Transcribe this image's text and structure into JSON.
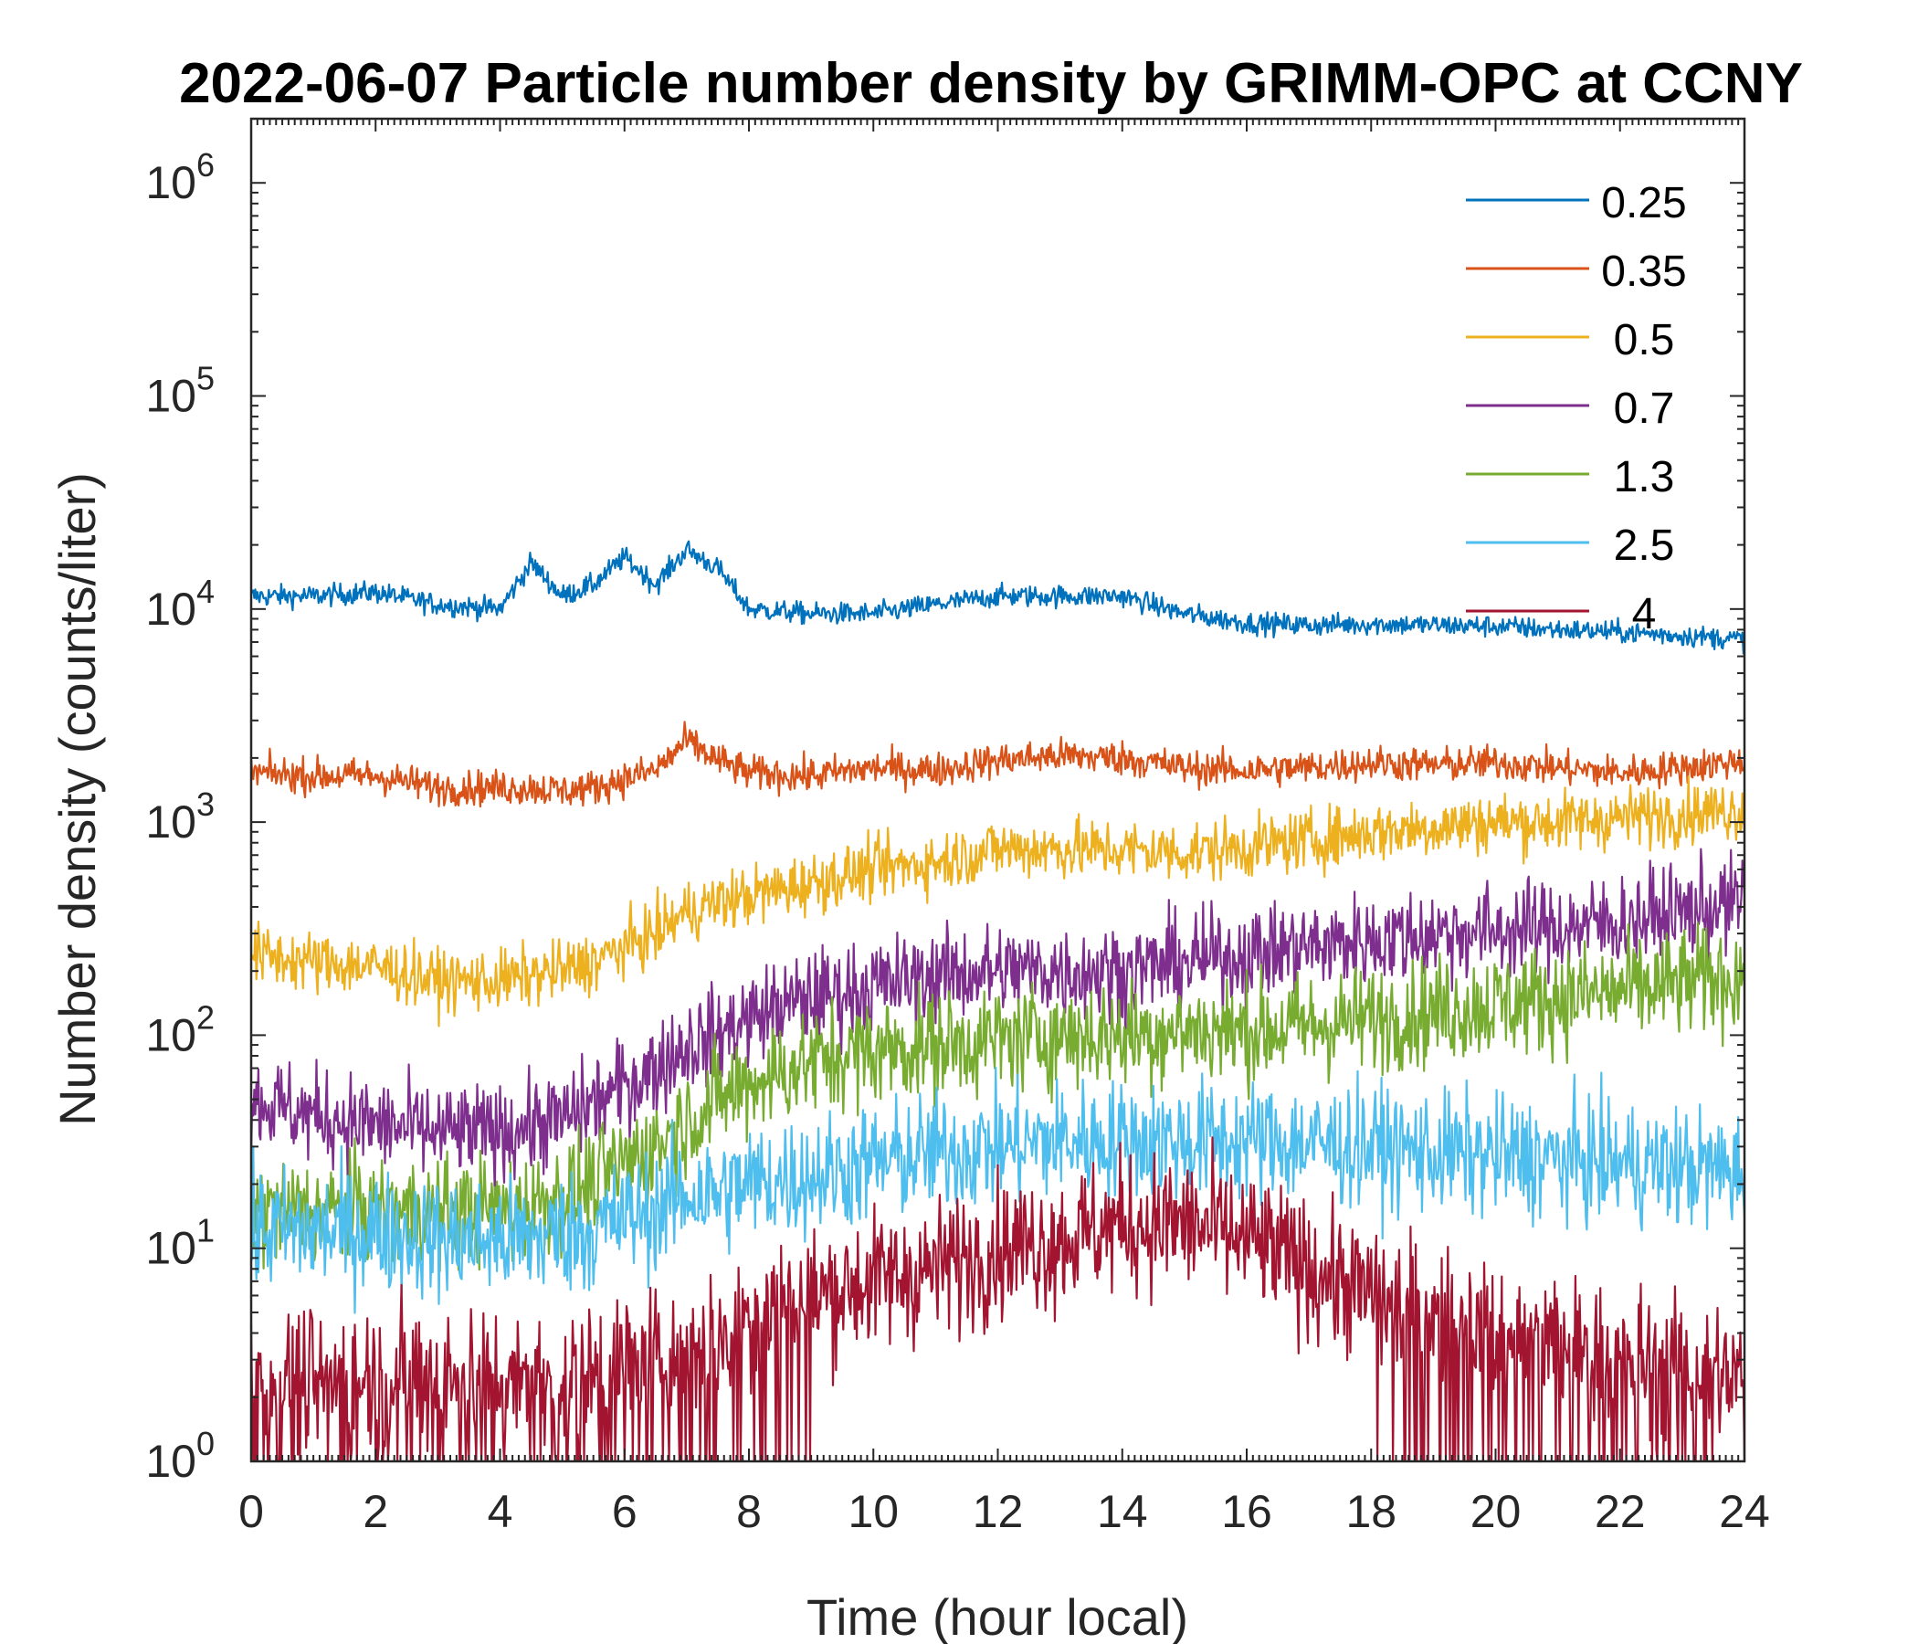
{
  "chart_data": {
    "type": "line",
    "title": "2022-06-07 Particle number density by GRIMM-OPC at CCNY",
    "xlabel": "Time (hour local)",
    "ylabel": "Number density (counts/liter)",
    "xlim": [
      0,
      24
    ],
    "ylim": [
      1,
      2000000
    ],
    "yscale": "log",
    "x_ticks": [
      0,
      2,
      4,
      6,
      8,
      10,
      12,
      14,
      16,
      18,
      20,
      22,
      24
    ],
    "x_tick_labels": [
      "0",
      "2",
      "4",
      "6",
      "8",
      "10",
      "12",
      "14",
      "16",
      "18",
      "20",
      "22",
      "24"
    ],
    "y_ticks": [
      1,
      10,
      100,
      1000,
      10000,
      100000,
      1000000
    ],
    "y_tick_bases": [
      "10",
      "10",
      "10",
      "10",
      "10",
      "10",
      "10"
    ],
    "y_tick_exponents": [
      "0",
      "1",
      "2",
      "3",
      "4",
      "5",
      "6"
    ],
    "legend_position": "top-right",
    "x": [
      0,
      1,
      2,
      3,
      4,
      4.5,
      5,
      5.5,
      6,
      6.5,
      7,
      7.5,
      8,
      9,
      10,
      11,
      12,
      13,
      14,
      15,
      16,
      17,
      18,
      19,
      20,
      21,
      22,
      23,
      24
    ],
    "series": [
      {
        "name": "0.25",
        "color": "#0072BD",
        "noise": 0.05,
        "values": [
          11500,
          11500,
          12000,
          10500,
          10000,
          16500,
          11500,
          13000,
          17500,
          13000,
          19000,
          15500,
          10000,
          9500,
          9500,
          10500,
          11500,
          11500,
          11500,
          9500,
          8600,
          8400,
          8500,
          8400,
          8300,
          8000,
          7800,
          7500,
          7200
        ]
      },
      {
        "name": "0.35",
        "color": "#D95319",
        "noise": 0.08,
        "values": [
          1700,
          1650,
          1650,
          1450,
          1450,
          1450,
          1400,
          1450,
          1600,
          1750,
          2400,
          1950,
          1700,
          1650,
          1800,
          1750,
          1950,
          2050,
          2000,
          1800,
          1750,
          1800,
          1900,
          1850,
          1900,
          1800,
          1700,
          1800,
          1950
        ]
      },
      {
        "name": "0.5",
        "color": "#EDB120",
        "noise": 0.14,
        "values": [
          240,
          220,
          210,
          180,
          180,
          190,
          200,
          220,
          260,
          300,
          380,
          420,
          450,
          520,
          600,
          650,
          750,
          750,
          740,
          720,
          760,
          820,
          900,
          950,
          1000,
          1000,
          1050,
          1100,
          1150
        ]
      },
      {
        "name": "0.7",
        "color": "#7E2F8E",
        "noise": 0.22,
        "values": [
          50,
          42,
          38,
          35,
          35,
          38,
          40,
          48,
          58,
          70,
          90,
          100,
          120,
          150,
          170,
          190,
          200,
          200,
          200,
          220,
          240,
          260,
          280,
          300,
          310,
          320,
          340,
          380,
          420
        ]
      },
      {
        "name": "1.3",
        "color": "#77AC30",
        "noise": 0.25,
        "values": [
          15,
          15,
          15,
          15,
          15,
          16,
          18,
          20,
          25,
          30,
          40,
          50,
          60,
          75,
          85,
          90,
          95,
          100,
          100,
          105,
          105,
          110,
          120,
          130,
          140,
          150,
          160,
          175,
          190
        ]
      },
      {
        "name": "2.5",
        "color": "#4DBEEE",
        "noise": 0.28,
        "values": [
          12,
          12,
          12,
          11,
          11,
          11,
          12,
          12,
          14,
          15,
          18,
          18,
          20,
          22,
          25,
          28,
          30,
          32,
          32,
          32,
          32,
          31,
          30,
          28,
          27,
          26,
          25,
          24,
          23
        ]
      },
      {
        "name": "4",
        "color": "#A2142F",
        "noise": 0.32,
        "values": [
          2.5,
          2.5,
          2.5,
          2.5,
          2.5,
          2.5,
          2.5,
          2.5,
          3,
          3,
          3.5,
          4,
          5,
          6,
          7,
          8,
          10,
          11,
          13,
          13,
          11,
          8,
          6,
          5,
          4,
          3.5,
          3,
          2.8,
          2.5
        ]
      }
    ]
  }
}
